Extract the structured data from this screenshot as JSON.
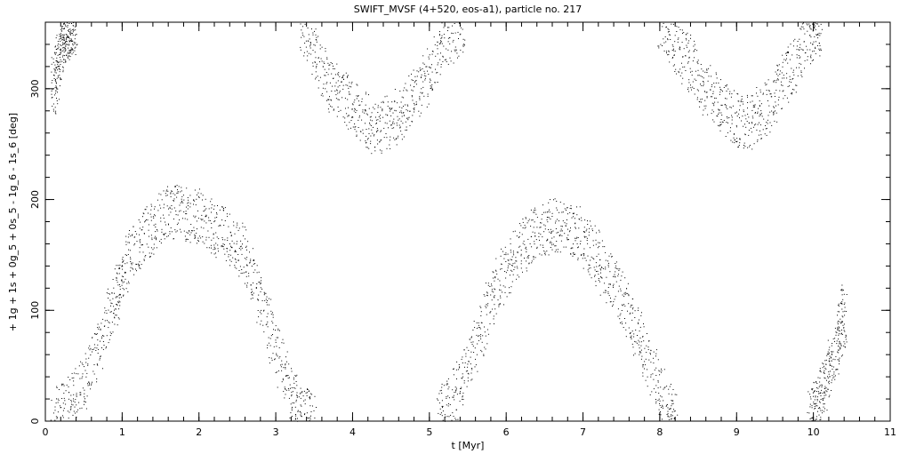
{
  "chart_data": {
    "type": "scatter",
    "title": "SWIFT_MVSF (4+520, eos-a1), particle no. 217",
    "xlabel": "t [Myr]",
    "ylabel": "+ 1g + 1s + 0g_5 + 0s_5 - 1g_6 - 1s_6 [deg]",
    "xlim": [
      0,
      11
    ],
    "ylim": [
      0,
      360
    ],
    "xticks": [
      "0",
      "1",
      "2",
      "3",
      "4",
      "5",
      "6",
      "7",
      "8",
      "9",
      "10",
      "11"
    ],
    "yticks": [
      "0",
      "100",
      "200",
      "300"
    ],
    "grid": false,
    "legend": "none",
    "point_color": "#000000",
    "segments": [
      {
        "x": [
          0.1,
          0.15,
          0.2,
          0.25,
          0.3,
          0.35,
          0.4
        ],
        "y": [
          300,
          320,
          335,
          345,
          352,
          356,
          360
        ]
      },
      {
        "x": [
          0.1,
          0.3,
          0.5,
          0.7,
          0.9,
          1.0,
          1.2,
          1.4,
          1.6,
          1.8,
          2.0,
          2.2,
          2.4,
          2.6,
          2.8,
          3.0,
          3.2,
          3.35,
          3.5
        ],
        "y": [
          5,
          15,
          35,
          70,
          110,
          135,
          160,
          175,
          190,
          188,
          185,
          175,
          165,
          150,
          110,
          65,
          25,
          8,
          0
        ]
      },
      {
        "x": [
          3.3,
          3.5,
          3.7,
          3.9,
          4.1,
          4.3,
          4.5,
          4.7,
          4.9,
          5.1,
          5.3,
          5.45
        ],
        "y": [
          360,
          330,
          305,
          290,
          275,
          265,
          270,
          285,
          305,
          330,
          350,
          360
        ]
      },
      {
        "x": [
          5.1,
          5.3,
          5.5,
          5.7,
          5.9,
          6.1,
          6.3,
          6.5,
          6.7,
          6.9,
          7.1,
          7.3,
          7.5,
          7.7,
          7.9,
          8.1,
          8.2
        ],
        "y": [
          5,
          20,
          50,
          90,
          125,
          150,
          165,
          175,
          178,
          172,
          155,
          135,
          110,
          80,
          45,
          12,
          0
        ]
      },
      {
        "x": [
          8.0,
          8.2,
          8.4,
          8.6,
          8.8,
          9.0,
          9.2,
          9.4,
          9.6,
          9.8,
          10.0,
          10.1
        ],
        "y": [
          360,
          340,
          320,
          300,
          285,
          272,
          270,
          285,
          305,
          330,
          350,
          360
        ]
      },
      {
        "x": [
          9.95,
          10.05,
          10.15,
          10.25,
          10.35,
          10.4
        ],
        "y": [
          5,
          20,
          35,
          55,
          80,
          100
        ]
      }
    ]
  }
}
